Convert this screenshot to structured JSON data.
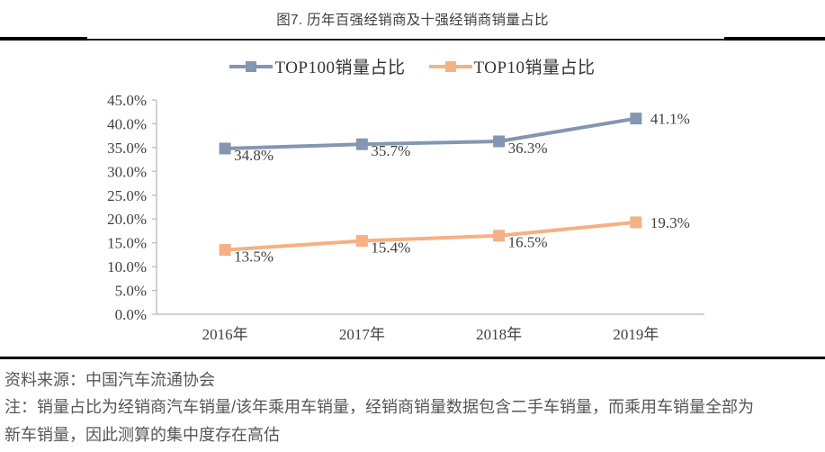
{
  "title": "图7. 历年百强经销商及十强经销商销量占比",
  "chart_data": {
    "type": "line",
    "categories": [
      "2016年",
      "2017年",
      "2018年",
      "2019年"
    ],
    "series": [
      {
        "name": "TOP100销量占比",
        "values": [
          34.8,
          35.7,
          36.3,
          41.1
        ],
        "color": "#8496B0"
      },
      {
        "name": "TOP10销量占比",
        "values": [
          13.5,
          15.4,
          16.5,
          19.3
        ],
        "color": "#F4B183"
      }
    ],
    "title": "图7. 历年百强经销商及十强经销商销量占比",
    "xlabel": "",
    "ylabel": "",
    "ylim": [
      0,
      45
    ],
    "ytick_step": 5,
    "ytick_labels": [
      "0.0%",
      "5.0%",
      "10.0%",
      "15.0%",
      "20.0%",
      "25.0%",
      "30.0%",
      "35.0%",
      "40.0%",
      "45.0%"
    ],
    "data_labels": [
      "34.8%",
      "35.7%",
      "36.3%",
      "41.1%",
      "13.5%",
      "15.4%",
      "16.5%",
      "19.3%"
    ],
    "grid": false,
    "legend_position": "top",
    "axis_color": "#BFBFBF",
    "text_color": "#404040"
  },
  "footer": {
    "source": "资料来源：中国汽车流通协会",
    "note_lines": [
      "注：销量占比为经销商汽车销量/该年乘用车销量，经销商销量数据包含二手车销量，而乘用车销量全部为",
      "新车销量，因此测算的集中度存在高估"
    ]
  }
}
